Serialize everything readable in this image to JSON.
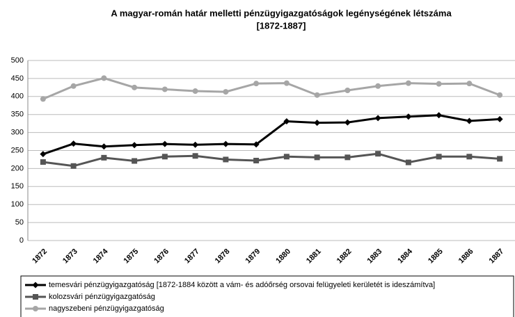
{
  "chart_data": {
    "type": "line",
    "title": [
      "A magyar-román határ melletti pénzügyigazgatóságok legénységének létszáma",
      "[1872-1887]"
    ],
    "categories": [
      "1872",
      "1873",
      "1874",
      "1875",
      "1876",
      "1877",
      "1878",
      "1879",
      "1880",
      "1881",
      "1882",
      "1883",
      "1884",
      "1885",
      "1886",
      "1887"
    ],
    "series": [
      {
        "name": "temesvári pénzügyigazgatóság [1872-1884 között a vám- és adóőrség orsovai felügyeleti kerületét is ideszámítva]",
        "color": "#000000",
        "marker": "diamond",
        "values": [
          240,
          269,
          261,
          265,
          268,
          266,
          268,
          267,
          331,
          327,
          328,
          340,
          344,
          348,
          332,
          337
        ]
      },
      {
        "name": "kolozsvári pénzügyigazgatóság",
        "color": "#555555",
        "marker": "square",
        "values": [
          218,
          207,
          230,
          221,
          233,
          235,
          225,
          222,
          233,
          231,
          231,
          241,
          217,
          233,
          233,
          227
        ]
      },
      {
        "name": "nagyszebeni pénzügyigazgatóság",
        "color": "#a6a6a6",
        "marker": "circle",
        "values": [
          393,
          429,
          451,
          425,
          420,
          415,
          413,
          436,
          437,
          404,
          417,
          429,
          437,
          435,
          436,
          404
        ]
      }
    ],
    "ylim": [
      0,
      500
    ],
    "yticks": [
      0,
      50,
      100,
      150,
      200,
      250,
      300,
      350,
      400,
      450,
      500
    ],
    "grid": true
  }
}
